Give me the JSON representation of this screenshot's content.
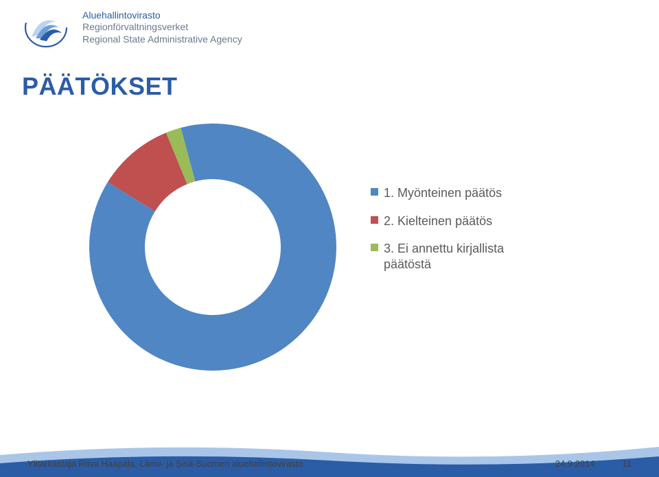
{
  "header": {
    "line1_text": "Aluehallintovirasto",
    "line1_color": "#2b5ca6",
    "line2_text": "Regionförvaltningsverket",
    "line2_color": "#6b7a8a",
    "line3_text": "Regional State Administrative Agency",
    "line3_color": "#6b7a8a",
    "logo": {
      "outer_stroke": "#2b5ca6",
      "inner_light": "#bcd3f0",
      "inner_mid": "#6ea0d6",
      "inner_dark": "#2b5ca6"
    }
  },
  "title": {
    "text": "PÄÄTÖKSET",
    "color": "#2b5ca6",
    "fontsize": 36
  },
  "chart": {
    "type": "pie",
    "inner_radius_ratio": 0.55,
    "start_angle_deg": -105,
    "background_color": "#ffffff",
    "hole_color": "#ffffff",
    "slices": [
      {
        "label": "1. Myönteinen päätös",
        "value": 88,
        "color": "#5086c3"
      },
      {
        "label": "2. Kielteinen päätös",
        "value": 10,
        "color": "#bf504f"
      },
      {
        "label": "3. Ei annettu kirjallista päätöstä",
        "value": 2,
        "color": "#9bbb58"
      }
    ],
    "legend": {
      "label_fontsize": 18,
      "label_color": "#5a5a5a",
      "swatch_size": 11
    }
  },
  "footer": {
    "wave_color_top": "#a9c6e8",
    "wave_color_bottom": "#2b5ca6",
    "text_color": "#404040",
    "left_text": "Ylitarkastaja Ritva Haapala, Länsi- ja Sisä-Suomen aluehallintovirasto",
    "date_text": "24.9.2014",
    "page_num": "11"
  }
}
